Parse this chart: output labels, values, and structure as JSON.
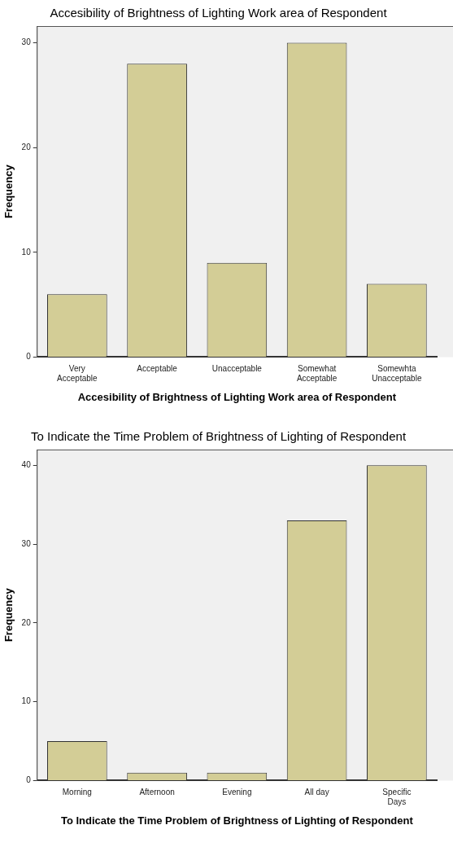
{
  "chart_data": [
    {
      "type": "bar",
      "title": "Accesibility of Brightness of Lighting Work area of Respondent",
      "xlabel": "Accesibility of Brightness of Lighting Work area of Respondent",
      "ylabel": "Frequency",
      "categories": [
        "Very Acceptable",
        "Acceptable",
        "Unacceptable",
        "Somewhat Acceptable",
        "Somewhta Unacceptable"
      ],
      "values": [
        6,
        28,
        9,
        30,
        7
      ],
      "color": "#d3cd96",
      "ylim": [
        0,
        31.6
      ],
      "yticks": [
        0,
        10,
        20,
        30
      ],
      "grid": false,
      "legend": false
    },
    {
      "type": "bar",
      "title": "To Indicate the Time Problem of Brightness of Lighting of Respondent",
      "xlabel": "To Indicate the Time Problem of Brightness of Lighting of Respondent",
      "ylabel": "Frequency",
      "categories": [
        "Morning",
        "Afternoon",
        "Evening",
        "All day",
        "Specific Days"
      ],
      "values": [
        5,
        1,
        1,
        33,
        40
      ],
      "color": "#d3cd96",
      "ylim": [
        0,
        42
      ],
      "yticks": [
        0,
        10,
        20,
        30,
        40
      ],
      "grid": false,
      "legend": false
    }
  ]
}
